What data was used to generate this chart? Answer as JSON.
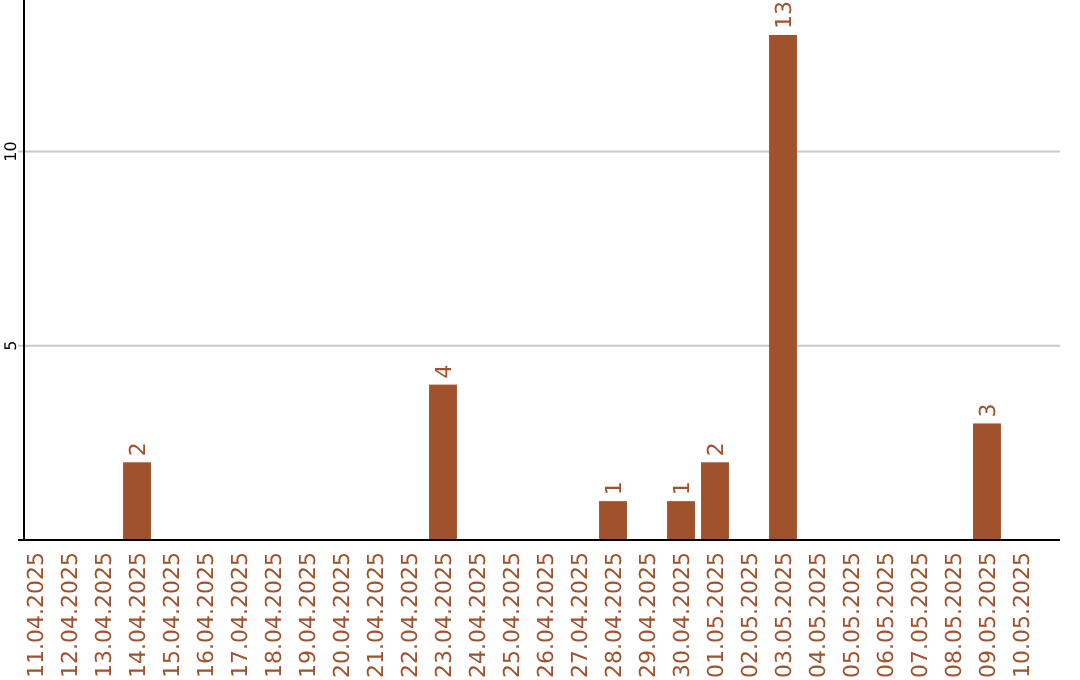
{
  "chart_data": {
    "type": "bar",
    "categories": [
      "11.04.2025",
      "12.04.2025",
      "13.04.2025",
      "14.04.2025",
      "15.04.2025",
      "16.04.2025",
      "17.04.2025",
      "18.04.2025",
      "19.04.2025",
      "20.04.2025",
      "21.04.2025",
      "22.04.2025",
      "23.04.2025",
      "24.04.2025",
      "25.04.2025",
      "26.04.2025",
      "27.04.2025",
      "28.04.2025",
      "29.04.2025",
      "30.04.2025",
      "01.05.2025",
      "02.05.2025",
      "03.05.2025",
      "04.05.2025",
      "05.05.2025",
      "06.05.2025",
      "07.05.2025",
      "08.05.2025",
      "09.05.2025",
      "10.05.2025"
    ],
    "values": [
      0,
      0,
      0,
      2,
      0,
      0,
      0,
      0,
      0,
      0,
      0,
      0,
      4,
      0,
      0,
      0,
      0,
      1,
      0,
      1,
      2,
      0,
      13,
      0,
      0,
      0,
      0,
      0,
      3,
      0
    ],
    "value_labels": [
      null,
      null,
      null,
      "2",
      null,
      null,
      null,
      null,
      null,
      null,
      null,
      null,
      "4",
      null,
      null,
      null,
      null,
      "1",
      null,
      "1",
      "2",
      null,
      "13",
      null,
      null,
      null,
      null,
      null,
      "3",
      null
    ],
    "color": "#a0522d",
    "ylim": [
      0,
      13.9
    ],
    "yticks": [
      5,
      10
    ],
    "grid": "y"
  }
}
